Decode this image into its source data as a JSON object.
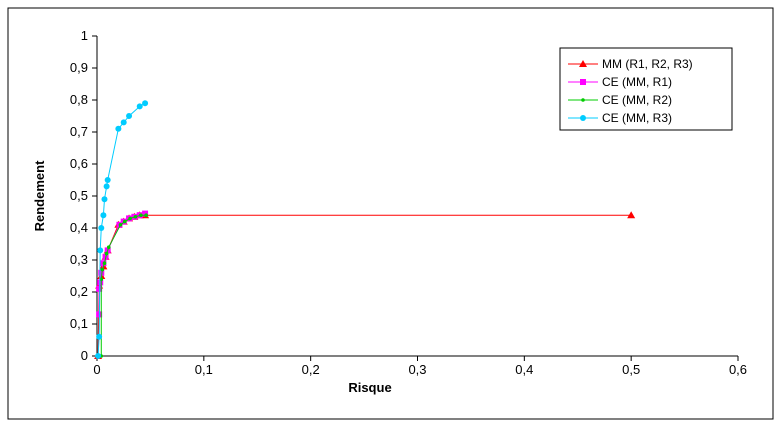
{
  "chart_data": {
    "type": "line",
    "title": "",
    "xlabel": "Risque",
    "ylabel": "Rendement",
    "xlim": [
      0,
      0.6
    ],
    "ylim": [
      0,
      1
    ],
    "x_ticks": [
      0,
      0.1,
      0.2,
      0.3,
      0.4,
      0.5,
      0.6
    ],
    "x_tick_labels": [
      "0",
      "0,1",
      "0,2",
      "0,3",
      "0,4",
      "0,5",
      "0,6"
    ],
    "y_ticks": [
      0,
      0.1,
      0.2,
      0.3,
      0.4,
      0.5,
      0.6,
      0.7,
      0.8,
      0.9,
      1
    ],
    "y_tick_labels": [
      "0",
      "0,1",
      "0,2",
      "0,3",
      "0,4",
      "0,5",
      "0,6",
      "0,7",
      "0,8",
      "0,9",
      "1"
    ],
    "grid": false,
    "legend_position": "top-right",
    "series": [
      {
        "name": "MM (R1, R2, R3)",
        "color": "#ff0000",
        "marker": "triangle",
        "points": [
          [
            0.001,
            0.0
          ],
          [
            0.002,
            0.22
          ],
          [
            0.004,
            0.25
          ],
          [
            0.006,
            0.28
          ],
          [
            0.008,
            0.31
          ],
          [
            0.01,
            0.33
          ],
          [
            0.02,
            0.41
          ],
          [
            0.025,
            0.42
          ],
          [
            0.03,
            0.43
          ],
          [
            0.035,
            0.435
          ],
          [
            0.04,
            0.44
          ],
          [
            0.045,
            0.44
          ],
          [
            0.5,
            0.44
          ]
        ]
      },
      {
        "name": "CE (MM, R1)",
        "color": "#ff00ff",
        "marker": "square",
        "points": [
          [
            0.002,
            0.13
          ],
          [
            0.002,
            0.21
          ],
          [
            0.003,
            0.23
          ],
          [
            0.004,
            0.26
          ],
          [
            0.006,
            0.29
          ],
          [
            0.008,
            0.31
          ],
          [
            0.01,
            0.33
          ],
          [
            0.021,
            0.41
          ],
          [
            0.025,
            0.42
          ],
          [
            0.03,
            0.43
          ],
          [
            0.035,
            0.435
          ],
          [
            0.04,
            0.44
          ],
          [
            0.045,
            0.445
          ]
        ]
      },
      {
        "name": "CE (MM, R2)",
        "color": "#00cc00",
        "marker": "dot",
        "points": [
          [
            0.004,
            0.0
          ],
          [
            0.004,
            0.24
          ],
          [
            0.005,
            0.27
          ],
          [
            0.007,
            0.29
          ],
          [
            0.009,
            0.32
          ],
          [
            0.011,
            0.34
          ],
          [
            0.022,
            0.41
          ],
          [
            0.026,
            0.42
          ],
          [
            0.031,
            0.43
          ],
          [
            0.036,
            0.435
          ],
          [
            0.041,
            0.44
          ],
          [
            0.046,
            0.44
          ]
        ]
      },
      {
        "name": "CE (MM, R3)",
        "color": "#00ccff",
        "marker": "circle",
        "points": [
          [
            0.001,
            0.0
          ],
          [
            0.002,
            0.06
          ],
          [
            0.003,
            0.33
          ],
          [
            0.004,
            0.4
          ],
          [
            0.006,
            0.44
          ],
          [
            0.007,
            0.49
          ],
          [
            0.009,
            0.53
          ],
          [
            0.01,
            0.55
          ],
          [
            0.02,
            0.71
          ],
          [
            0.025,
            0.73
          ],
          [
            0.03,
            0.75
          ],
          [
            0.04,
            0.78
          ],
          [
            0.045,
            0.79
          ]
        ]
      }
    ]
  }
}
